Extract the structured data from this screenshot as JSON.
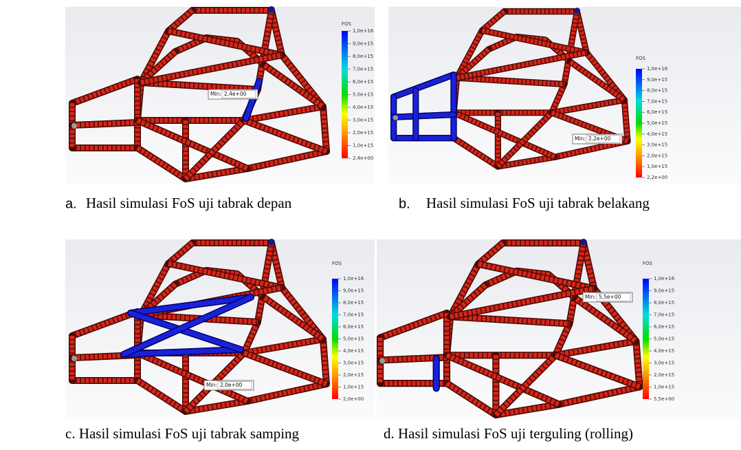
{
  "panels": [
    {
      "legend": {
        "title": "FOS",
        "labels": [
          "1,0e+16",
          "9,0e+15",
          "8,0e+15",
          "7,0e+15",
          "6,0e+15",
          "5,0e+15",
          "4,0e+15",
          "3,0e+15",
          "2,0e+15",
          "1,0e+15",
          "2,4e+00"
        ]
      },
      "min": {
        "label": "Min:",
        "value": "2,4e+00"
      },
      "caption": {
        "marker": "a.",
        "text": "Hasil simulasi FoS uji tabrak depan"
      }
    },
    {
      "legend": {
        "title": "FOS",
        "labels": [
          "1,0e+16",
          "9,0e+15",
          "8,0e+15",
          "7,0e+15",
          "6,0e+15",
          "5,0e+15",
          "4,0e+15",
          "3,0e+15",
          "2,0e+15",
          "1,0e+15",
          "2,2e+00"
        ]
      },
      "min": {
        "label": "Min:",
        "value": "2,2e+00"
      },
      "caption": {
        "marker": "b.",
        "text": "Hasil simulasi FoS uji tabrak belakang"
      }
    },
    {
      "legend": {
        "title": "FOS",
        "labels": [
          "1,0e+16",
          "9,0e+15",
          "8,0e+15",
          "7,0e+15",
          "6,0e+15",
          "5,0e+15",
          "4,0e+15",
          "3,0e+15",
          "2,0e+15",
          "1,0e+15",
          "2,0e+00"
        ]
      },
      "min": {
        "label": "Min:",
        "value": "2,0e+00"
      },
      "caption": {
        "text": "c. Hasil simulasi FoS uji tabrak samping"
      }
    },
    {
      "legend": {
        "title": "FOS",
        "labels": [
          "1,0e+16",
          "9,0e+15",
          "8,0e+15",
          "7,0e+15",
          "6,0e+15",
          "5,0e+15",
          "4,0e+15",
          "3,0e+15",
          "2,0e+15",
          "1,0e+15",
          "5,5e+00"
        ]
      },
      "min": {
        "label": "Min:",
        "value": "5,5e+00"
      },
      "caption": {
        "text": "d. Hasil simulasi FoS uji terguling (rolling)"
      }
    }
  ]
}
